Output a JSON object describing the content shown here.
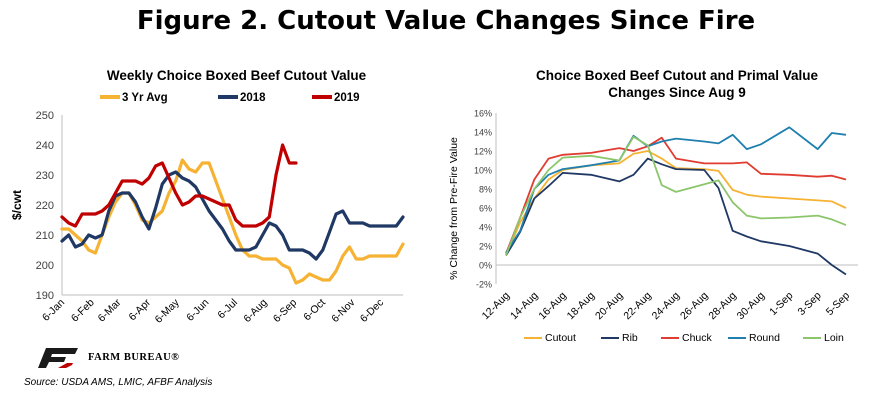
{
  "figure_title": "Figure 2. Cutout Value Changes Since Fire",
  "source": "Source:  USDA AMS, LMIC, AFBF Analysis",
  "org_name": "FARM BUREAU®",
  "colors": {
    "avg3": "#f6b233",
    "y2018": "#1f3864",
    "y2019": "#c00000",
    "cutout": "#f6b233",
    "rib": "#1f3864",
    "chuck": "#e03c31",
    "round": "#1f7faf",
    "loin": "#8cc66b",
    "logo_red": "#c00000",
    "logo_dark": "#1a1a1a"
  },
  "chart_data": [
    {
      "type": "line",
      "title": "Weekly Choice Boxed Beef Cutout Value",
      "xlabel": "",
      "ylabel": "$/cwt",
      "ylim": [
        190,
        250
      ],
      "yticks": [
        190,
        200,
        210,
        220,
        230,
        240,
        250
      ],
      "x_range": [
        0,
        51
      ],
      "xticks": [
        {
          "label": "6-Jan",
          "week": 0
        },
        {
          "label": "6-Feb",
          "week": 4.43
        },
        {
          "label": "6-Mar",
          "week": 8.43
        },
        {
          "label": "6-Apr",
          "week": 12.86
        },
        {
          "label": "6-May",
          "week": 17.14
        },
        {
          "label": "6-Jun",
          "week": 21.57
        },
        {
          "label": "6-Jul",
          "week": 25.86
        },
        {
          "label": "6-Aug",
          "week": 30.29
        },
        {
          "label": "6-Sep",
          "week": 34.71
        },
        {
          "label": "6-Oct",
          "week": 39
        },
        {
          "label": "6-Nov",
          "week": 43.43
        },
        {
          "label": "6-Dec",
          "week": 47.71
        }
      ],
      "legend_position": "top",
      "grid": false,
      "series": [
        {
          "name": "3 Yr Avg",
          "color_key": "avg3",
          "x": [
            0,
            1,
            2,
            3,
            4,
            5,
            6,
            7,
            8,
            9,
            10,
            11,
            12,
            13,
            14,
            15,
            16,
            17,
            18,
            19,
            20,
            21,
            22,
            23,
            24,
            25,
            26,
            27,
            28,
            29,
            30,
            31,
            32,
            33,
            34,
            35,
            36,
            37,
            38,
            39,
            40,
            41,
            42,
            43,
            44,
            45,
            46,
            47,
            48,
            49,
            50,
            51
          ],
          "values": [
            212,
            212,
            210,
            208,
            205,
            204,
            210,
            216,
            221,
            224,
            224,
            220,
            215,
            214,
            216,
            218,
            224,
            228,
            235,
            232,
            231,
            234,
            234,
            228,
            222,
            216,
            210,
            205,
            203,
            203,
            202,
            202,
            202,
            200,
            199,
            194,
            195,
            197,
            196,
            195,
            195,
            198,
            203,
            206,
            202,
            202,
            203,
            203,
            203,
            203,
            203,
            207
          ]
        },
        {
          "name": "2018",
          "color_key": "y2018",
          "x": [
            0,
            1,
            2,
            3,
            4,
            5,
            6,
            7,
            8,
            9,
            10,
            11,
            12,
            13,
            14,
            15,
            16,
            17,
            18,
            19,
            20,
            21,
            22,
            23,
            24,
            25,
            26,
            27,
            28,
            29,
            30,
            31,
            32,
            33,
            34,
            35,
            36,
            37,
            38,
            39,
            40,
            41,
            42,
            43,
            44,
            45,
            46,
            47,
            48,
            49,
            50,
            51
          ],
          "values": [
            208,
            210,
            206,
            207,
            210,
            209,
            210,
            218,
            223,
            224,
            224,
            221,
            216,
            212,
            219,
            227,
            230,
            231,
            229,
            228,
            226,
            222,
            218,
            215,
            212,
            208,
            205,
            205,
            205,
            206,
            210,
            214,
            213,
            210,
            205,
            205,
            205,
            204,
            202,
            205,
            211,
            217,
            218,
            214,
            214,
            214,
            213,
            213,
            213,
            213,
            213,
            216
          ]
        },
        {
          "name": "2019",
          "color_key": "y2019",
          "x": [
            0,
            1,
            2,
            3,
            4,
            5,
            6,
            7,
            8,
            9,
            10,
            11,
            12,
            13,
            14,
            15,
            16,
            17,
            18,
            19,
            20,
            21,
            22,
            23,
            24,
            25,
            26,
            27,
            28,
            29,
            30,
            31,
            32,
            33,
            34,
            35
          ],
          "values": [
            216,
            214,
            213,
            217,
            217,
            217,
            218,
            220,
            224,
            228,
            228,
            228,
            227,
            229,
            233,
            234,
            229,
            224,
            220,
            221,
            223,
            223,
            222,
            221,
            220,
            220,
            215,
            213,
            213,
            213,
            214,
            216,
            230,
            240,
            234,
            234
          ]
        }
      ]
    },
    {
      "type": "line",
      "title": "Choice Boxed Beef Cutout and Primal Value Changes Since Aug 9",
      "xlabel": "",
      "ylabel": "% Change from Pre-Fire Value",
      "ylim": [
        -2,
        16
      ],
      "yticks": [
        "-2%",
        "0%",
        "2%",
        "4%",
        "6%",
        "8%",
        "10%",
        "12%",
        "14%",
        "16%"
      ],
      "categories": [
        "12-Aug",
        "13-Aug",
        "14-Aug",
        "15-Aug",
        "16-Aug",
        "17-Aug",
        "18-Aug",
        "19-Aug",
        "20-Aug",
        "21-Aug",
        "22-Aug",
        "23-Aug",
        "24-Aug",
        "25-Aug",
        "26-Aug",
        "27-Aug",
        "28-Aug",
        "29-Aug",
        "30-Aug",
        "31-Aug",
        "1-Sep",
        "2-Sep",
        "3-Sep",
        "4-Sep",
        "5-Sep"
      ],
      "x_label_every": 2,
      "legend_position": "bottom",
      "grid": false,
      "series": [
        {
          "name": "Cutout",
          "color_key": "cutout",
          "x": [
            0,
            1,
            2,
            3,
            4,
            6,
            8,
            9,
            10,
            11,
            12,
            14,
            15,
            16,
            17,
            18,
            20,
            22,
            23,
            24
          ],
          "values": [
            1,
            4.5,
            7,
            9,
            10,
            10.5,
            10.7,
            11.7,
            12,
            11.2,
            10.2,
            10.1,
            9.9,
            7.9,
            7.4,
            7.2,
            7,
            6.8,
            6.7,
            6
          ]
        },
        {
          "name": "Rib",
          "color_key": "rib",
          "x": [
            0,
            1,
            2,
            3,
            4,
            6,
            8,
            9,
            10,
            11,
            12,
            14,
            15,
            16,
            17,
            18,
            20,
            22,
            23,
            24
          ],
          "values": [
            1,
            3.5,
            7,
            8.3,
            9.7,
            9.5,
            8.8,
            9.5,
            11.2,
            10.6,
            10.1,
            10,
            8.1,
            3.6,
            3,
            2.5,
            2,
            1.2,
            0,
            -1
          ]
        },
        {
          "name": "Chuck",
          "color_key": "chuck",
          "x": [
            0,
            1,
            2,
            3,
            4,
            6,
            8,
            9,
            10,
            11,
            12,
            14,
            15,
            16,
            17,
            18,
            20,
            22,
            23,
            24
          ],
          "values": [
            1.2,
            5,
            9,
            11.2,
            11.6,
            11.8,
            12.3,
            12,
            12.5,
            13.4,
            11.2,
            10.7,
            10.7,
            10.7,
            10.8,
            9.6,
            9.5,
            9.3,
            9.4,
            9
          ]
        },
        {
          "name": "Round",
          "color_key": "round",
          "x": [
            0,
            1,
            2,
            3,
            4,
            6,
            8,
            9,
            10,
            11,
            12,
            14,
            15,
            16,
            17,
            18,
            20,
            22,
            23,
            24
          ],
          "values": [
            1.3,
            3.6,
            8,
            9.5,
            10.1,
            10.5,
            11,
            13.6,
            12.5,
            13,
            13.3,
            13,
            12.8,
            13.7,
            12.2,
            12.7,
            14.5,
            12.2,
            13.9,
            13.7
          ]
        },
        {
          "name": "Loin",
          "color_key": "loin",
          "x": [
            0,
            1,
            2,
            3,
            4,
            6,
            8,
            9,
            10,
            11,
            12,
            14,
            15,
            16,
            17,
            18,
            20,
            22,
            23,
            24
          ],
          "values": [
            1,
            5,
            8,
            10,
            11.3,
            11.5,
            11,
            13.5,
            12.6,
            8.4,
            7.7,
            8.5,
            8.9,
            6.6,
            5.2,
            4.9,
            5,
            5.2,
            4.8,
            4.2
          ]
        }
      ]
    }
  ]
}
